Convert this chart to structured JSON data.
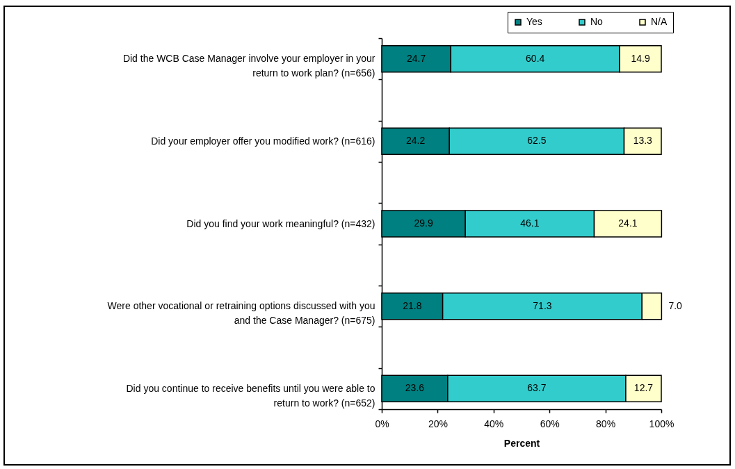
{
  "chart_data": {
    "type": "bar",
    "orientation": "horizontal",
    "stacked": true,
    "categories": [
      "Did the WCB Case Manager involve your employer in your return to work plan? (n=656)",
      null,
      "Did your employer offer you modified work? (n=616)",
      null,
      "Did you find your work meaningful? (n=432)",
      null,
      "Were other vocational or retraining options discussed with you and the Case Manager? (n=675)",
      null,
      "Did you continue to receive benefits until you were able to return to work? (n=652)"
    ],
    "series": [
      {
        "name": "Yes",
        "color": "#008080",
        "values": [
          24.7,
          null,
          24.2,
          null,
          29.9,
          null,
          21.8,
          null,
          23.6
        ],
        "value_labels": [
          "24.7",
          null,
          "24.2",
          null,
          "29.9",
          null,
          "21.8",
          null,
          "23.6"
        ]
      },
      {
        "name": "No",
        "color": "#33cccc",
        "values": [
          60.4,
          null,
          62.5,
          null,
          46.1,
          null,
          71.3,
          null,
          63.7
        ],
        "value_labels": [
          "60.4",
          null,
          "62.5",
          null,
          "46.1",
          null,
          "71.3",
          null,
          "63.7"
        ]
      },
      {
        "name": "N/A",
        "color": "#ffffcc",
        "values": [
          14.9,
          null,
          13.3,
          null,
          24.1,
          null,
          7.0,
          null,
          12.7
        ],
        "value_labels": [
          "14.9",
          null,
          "13.3",
          null,
          "24.1",
          null,
          "7.0",
          null,
          "12.7"
        ]
      }
    ],
    "xlim": [
      0,
      100
    ],
    "xticks": [
      {
        "value": 0,
        "label": "0%"
      },
      {
        "value": 20,
        "label": "20%"
      },
      {
        "value": 40,
        "label": "40%"
      },
      {
        "value": 60,
        "label": "60%"
      },
      {
        "value": 80,
        "label": "80%"
      },
      {
        "value": 100,
        "label": "100%"
      }
    ],
    "xlabel": "Percent",
    "legend": "top right"
  }
}
